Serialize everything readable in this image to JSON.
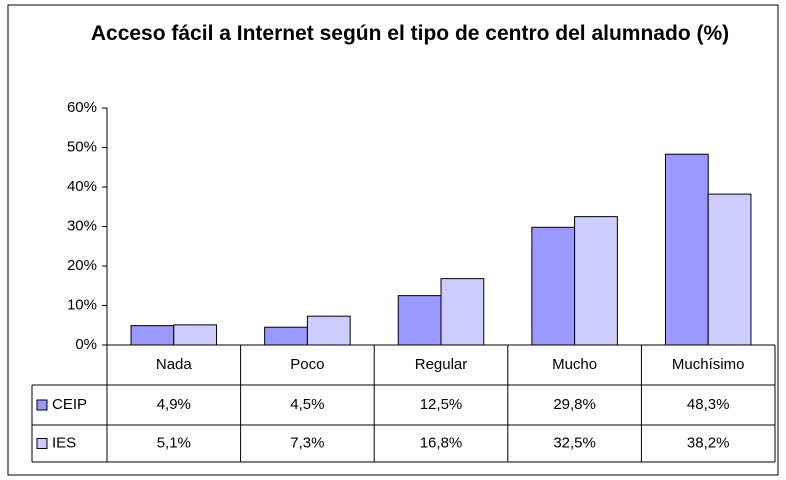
{
  "chart_data": {
    "type": "bar",
    "title": "Acceso fácil a Internet según el tipo de centro del alumnado (%)",
    "categories": [
      "Nada",
      "Poco",
      "Regular",
      "Mucho",
      "Muchísimo"
    ],
    "series": [
      {
        "name": "CEIP",
        "color": "#9999ff",
        "values": [
          4.9,
          4.5,
          12.5,
          29.8,
          48.3
        ],
        "value_labels": [
          "4,9%",
          "4,5%",
          "12,5%",
          "29,8%",
          "48,3%"
        ]
      },
      {
        "name": "IES",
        "color": "#ccccff",
        "values": [
          5.1,
          7.3,
          16.8,
          32.5,
          38.2
        ],
        "value_labels": [
          "5,1%",
          "7,3%",
          "16,8%",
          "32,5%",
          "38,2%"
        ]
      }
    ],
    "ylim": [
      0,
      60
    ],
    "yticks": [
      {
        "value": 0,
        "label": "0%"
      },
      {
        "value": 10,
        "label": "10%"
      },
      {
        "value": 20,
        "label": "20%"
      },
      {
        "value": 30,
        "label": "30%"
      },
      {
        "value": 40,
        "label": "40%"
      },
      {
        "value": 50,
        "label": "50%"
      },
      {
        "value": 60,
        "label": "60%"
      }
    ],
    "grid": false
  }
}
